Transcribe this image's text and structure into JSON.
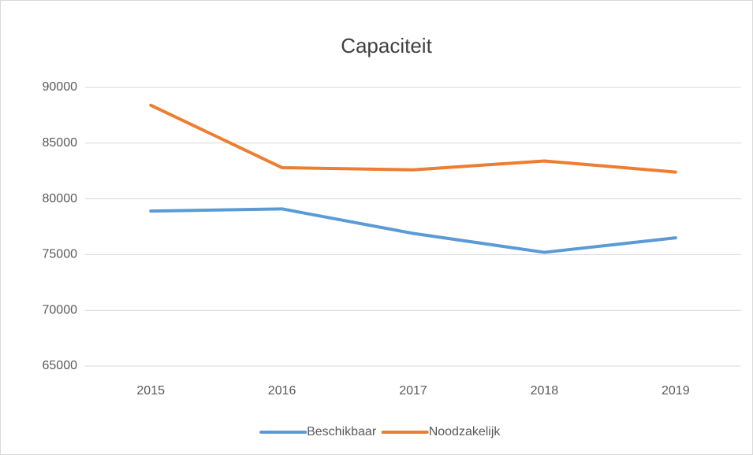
{
  "chart_data": {
    "type": "line",
    "title": "Capaciteit",
    "categories": [
      "2015",
      "2016",
      "2017",
      "2018",
      "2019"
    ],
    "series": [
      {
        "name": "Beschikbaar",
        "color": "#5b9bd5",
        "values": [
          78900,
          79100,
          76900,
          75200,
          76500
        ]
      },
      {
        "name": "Noodzakelijk",
        "color": "#ed7d31",
        "values": [
          88400,
          82800,
          82600,
          83400,
          82400
        ]
      }
    ],
    "ylim": [
      65000,
      90000
    ],
    "yticks": [
      65000,
      70000,
      75000,
      80000,
      85000,
      90000
    ],
    "grid": true,
    "legend": "bottom"
  }
}
